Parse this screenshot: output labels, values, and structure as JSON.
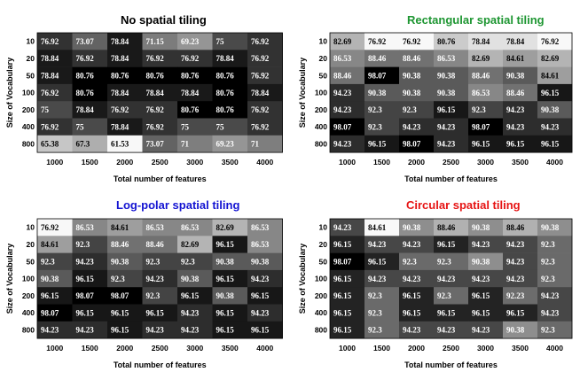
{
  "colors": {
    "title_no": "#000000",
    "title_rect": "#1e9632",
    "title_logpolar": "#1414d2",
    "title_circular": "#e61414"
  },
  "chart_data": [
    {
      "type": "heatmap",
      "title": "No spatial tiling",
      "title_color": "#000000",
      "xlabel": "Total number of features",
      "ylabel": "Size of Vocabulary",
      "x_categories": [
        "1000",
        "1500",
        "2000",
        "2500",
        "3000",
        "3500",
        "4000"
      ],
      "y_categories": [
        "10",
        "20",
        "50",
        "100",
        "200",
        "400",
        "800"
      ],
      "color_range": [
        61.53,
        80.76
      ],
      "values": [
        [
          76.92,
          73.07,
          78.84,
          71.15,
          69.23,
          75,
          76.92
        ],
        [
          78.84,
          76.92,
          78.84,
          76.92,
          76.92,
          78.84,
          76.92
        ],
        [
          78.84,
          80.76,
          80.76,
          80.76,
          80.76,
          80.76,
          76.92
        ],
        [
          76.92,
          80.76,
          78.84,
          78.84,
          78.84,
          80.76,
          78.84
        ],
        [
          75,
          78.84,
          76.92,
          76.92,
          80.76,
          80.76,
          76.92
        ],
        [
          76.92,
          75,
          78.84,
          76.92,
          75,
          75,
          76.92
        ],
        [
          65.38,
          67.3,
          61.53,
          73.07,
          71,
          69.23,
          71
        ]
      ]
    },
    {
      "type": "heatmap",
      "title": "Rectangular spatial tiling",
      "title_color": "#1e9632",
      "xlabel": "Total number of features",
      "ylabel": "Size of Vocabulary",
      "x_categories": [
        "1000",
        "1500",
        "2000",
        "2500",
        "3000",
        "3500",
        "4000"
      ],
      "y_categories": [
        "10",
        "20",
        "50",
        "100",
        "200",
        "400",
        "800"
      ],
      "color_range": [
        76.92,
        98.07
      ],
      "values": [
        [
          82.69,
          76.92,
          76.92,
          80.76,
          78.84,
          78.84,
          76.92
        ],
        [
          86.53,
          88.46,
          88.46,
          86.53,
          82.69,
          84.61,
          82.69
        ],
        [
          88.46,
          98.07,
          90.38,
          90.38,
          88.46,
          90.38,
          84.61
        ],
        [
          94.23,
          90.38,
          90.38,
          90.38,
          86.53,
          88.46,
          96.15
        ],
        [
          94.23,
          92.3,
          92.3,
          96.15,
          92.3,
          94.23,
          90.38
        ],
        [
          98.07,
          92.3,
          94.23,
          94.23,
          98.07,
          94.23,
          94.23
        ],
        [
          94.23,
          96.15,
          98.07,
          94.23,
          96.15,
          96.15,
          96.15
        ]
      ]
    },
    {
      "type": "heatmap",
      "title": "Log-polar spatial tiling",
      "title_color": "#1414d2",
      "xlabel": "Total number of features",
      "ylabel": "Size of Vocabulary",
      "x_categories": [
        "1000",
        "1500",
        "2000",
        "2500",
        "3000",
        "3500",
        "4000"
      ],
      "y_categories": [
        "10",
        "20",
        "50",
        "100",
        "200",
        "400",
        "800"
      ],
      "color_range": [
        76.92,
        98.07
      ],
      "values": [
        [
          76.92,
          86.53,
          84.61,
          86.53,
          86.53,
          82.69,
          86.53
        ],
        [
          84.61,
          92.3,
          88.46,
          88.46,
          82.69,
          96.15,
          86.53
        ],
        [
          92.3,
          94.23,
          90.38,
          92.3,
          92.3,
          90.38,
          90.38
        ],
        [
          90.38,
          96.15,
          92.3,
          94.23,
          90.38,
          96.15,
          94.23
        ],
        [
          96.15,
          98.07,
          98.07,
          92.3,
          96.15,
          90.38,
          96.15
        ],
        [
          98.07,
          96.15,
          96.15,
          96.15,
          94.23,
          96.15,
          94.23
        ],
        [
          94.23,
          94.23,
          96.15,
          94.23,
          94.23,
          96.15,
          96.15
        ]
      ]
    },
    {
      "type": "heatmap",
      "title": "Circular spatial tiling",
      "title_color": "#e61414",
      "xlabel": "Total number of features",
      "ylabel": "Size of Vocabulary",
      "x_categories": [
        "1000",
        "1500",
        "2000",
        "2500",
        "3000",
        "3500",
        "4000"
      ],
      "y_categories": [
        "10",
        "20",
        "50",
        "100",
        "200",
        "400",
        "800"
      ],
      "color_range": [
        84.61,
        98.07
      ],
      "values": [
        [
          94.23,
          84.61,
          90.38,
          88.46,
          90.38,
          88.46,
          90.38
        ],
        [
          96.15,
          94.23,
          94.23,
          96.15,
          94.23,
          94.23,
          92.3
        ],
        [
          98.07,
          96.15,
          92.3,
          92.3,
          90.38,
          94.23,
          92.3
        ],
        [
          96.15,
          94.23,
          94.23,
          94.23,
          94.23,
          94.23,
          92.3
        ],
        [
          96.15,
          92.3,
          96.15,
          92.3,
          96.15,
          92.23,
          94.23
        ],
        [
          96.15,
          92.3,
          96.15,
          96.15,
          96.15,
          96.15,
          94.23
        ],
        [
          96.15,
          92.3,
          94.23,
          94.23,
          94.23,
          90.38,
          92.3
        ]
      ]
    }
  ]
}
